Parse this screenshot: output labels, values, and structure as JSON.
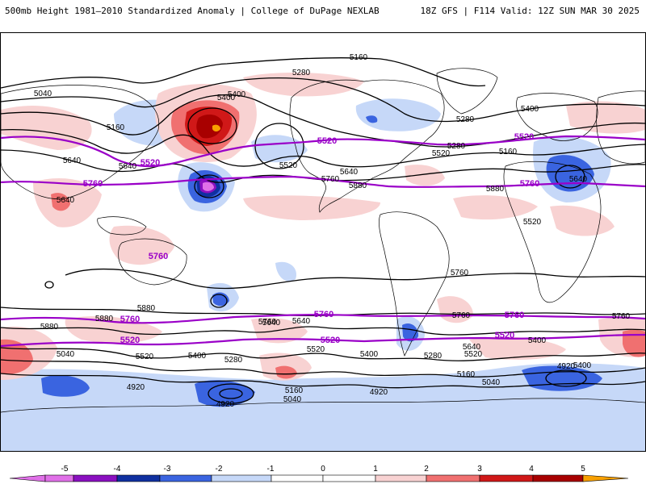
{
  "header": {
    "title_left": "500mb Height 1981–2010 Standardized Anomaly | College of DuPage NEXLAB",
    "title_right": "18Z GFS | F114 Valid: 12Z SUN MAR 30 2025"
  },
  "colors": {
    "neg5": "#e070e8",
    "neg4": "#8a10c0",
    "neg3": "#1030a0",
    "neg2": "#3a64e0",
    "neg1": "#c6d8f8",
    "zero": "#ffffff",
    "pos1": "#f8d2d2",
    "pos2": "#f07070",
    "pos3": "#d01818",
    "pos4": "#a80000",
    "pos5": "#f8a000",
    "contour": "#000000",
    "major_contour": "#9a00c8"
  },
  "colorbar": {
    "ticks": [
      "-5",
      "-4",
      "-3",
      "-2",
      "-1",
      "0",
      "1",
      "2",
      "3",
      "4",
      "5"
    ]
  },
  "contour_labels": [
    {
      "text": "5040",
      "major": false
    },
    {
      "text": "5160",
      "major": false
    },
    {
      "text": "5280",
      "major": false
    },
    {
      "text": "5400",
      "major": false
    },
    {
      "text": "5640",
      "major": false
    },
    {
      "text": "5520",
      "major": true
    },
    {
      "text": "5760",
      "major": true
    },
    {
      "text": "5640",
      "major": false
    },
    {
      "text": "5520",
      "major": false
    },
    {
      "text": "5880",
      "major": false
    },
    {
      "text": "5280",
      "major": false
    },
    {
      "text": "5400",
      "major": false
    },
    {
      "text": "5160",
      "major": false
    },
    {
      "text": "5520",
      "major": true
    },
    {
      "text": "5640",
      "major": false
    },
    {
      "text": "5760",
      "major": true
    },
    {
      "text": "5760",
      "major": false
    },
    {
      "text": "5520",
      "major": false
    },
    {
      "text": "5280",
      "major": false
    },
    {
      "text": "5400",
      "major": false
    },
    {
      "text": "5160",
      "major": false
    },
    {
      "text": "5520",
      "major": true
    },
    {
      "text": "5640",
      "major": false
    },
    {
      "text": "5760",
      "major": true
    },
    {
      "text": "5760",
      "major": false
    },
    {
      "text": "5520",
      "major": false
    },
    {
      "text": "5880",
      "major": false
    },
    {
      "text": "5880",
      "major": false
    },
    {
      "text": "5880",
      "major": false
    },
    {
      "text": "5880",
      "major": false
    },
    {
      "text": "5760",
      "major": false
    },
    {
      "text": "5640",
      "major": false
    },
    {
      "text": "5760",
      "major": true
    },
    {
      "text": "5520",
      "major": true
    },
    {
      "text": "5040",
      "major": false
    },
    {
      "text": "5520",
      "major": false
    },
    {
      "text": "5400",
      "major": false
    },
    {
      "text": "5280",
      "major": false
    },
    {
      "text": "4920",
      "major": false
    },
    {
      "text": "4920",
      "major": false
    },
    {
      "text": "5160",
      "major": false
    },
    {
      "text": "5040",
      "major": false
    },
    {
      "text": "5640",
      "major": false
    },
    {
      "text": "5760",
      "major": false
    },
    {
      "text": "5520",
      "major": false
    },
    {
      "text": "5760",
      "major": true
    },
    {
      "text": "5520",
      "major": true
    },
    {
      "text": "5400",
      "major": false
    },
    {
      "text": "4920",
      "major": false
    },
    {
      "text": "5280",
      "major": false
    },
    {
      "text": "5760",
      "major": false
    },
    {
      "text": "5640",
      "major": false
    },
    {
      "text": "5520",
      "major": false
    },
    {
      "text": "5400",
      "major": false
    },
    {
      "text": "5160",
      "major": false
    },
    {
      "text": "5040",
      "major": false
    },
    {
      "text": "5760",
      "major": true
    },
    {
      "text": "5520",
      "major": true
    },
    {
      "text": "5640",
      "major": false
    },
    {
      "text": "5400",
      "major": false
    },
    {
      "text": "4920",
      "major": false
    }
  ]
}
